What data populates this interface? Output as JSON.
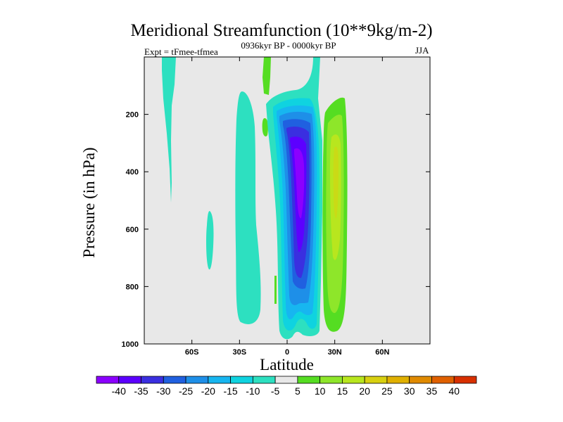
{
  "chart_data": {
    "type": "contour",
    "title": "Meridional Streamfunction (10**9kg/m-2)",
    "subtitle_left": "Expt = tFmee-tfmea",
    "subtitle_center": "0936kyr BP - 0000kyr BP",
    "subtitle_right": "JJA",
    "xlabel": "Latitude",
    "ylabel": "Pressure (in hPa)",
    "xlim": [
      -90,
      90
    ],
    "ylim": [
      1000,
      0
    ],
    "x_ticks": [
      {
        "value": -60,
        "label": "60S"
      },
      {
        "value": -30,
        "label": "30S"
      },
      {
        "value": 0,
        "label": "0"
      },
      {
        "value": 30,
        "label": "30N"
      },
      {
        "value": 60,
        "label": "60N"
      }
    ],
    "y_ticks": [
      {
        "value": 200,
        "label": "200"
      },
      {
        "value": 400,
        "label": "400"
      },
      {
        "value": 600,
        "label": "600"
      },
      {
        "value": 800,
        "label": "800"
      },
      {
        "value": 1000,
        "label": "1000"
      }
    ],
    "colorbar": {
      "levels": [
        "-40",
        "-35",
        "-30",
        "-25",
        "-20",
        "-15",
        "-10",
        "-5",
        "5",
        "10",
        "15",
        "20",
        "25",
        "30",
        "35",
        "40"
      ],
      "colors": [
        "#8b00ff",
        "#5c00ff",
        "#3a2fe0",
        "#2060e0",
        "#1e8fe8",
        "#17b6f0",
        "#0fd3e0",
        "#2de0c0",
        "#e8e8e8",
        "#55dd22",
        "#8ee62a",
        "#b8e61e",
        "#d8d010",
        "#e0b000",
        "#e08a00",
        "#e06000",
        "#d83000"
      ]
    },
    "regions": [
      {
        "name": "northern-hemisphere-positive-cell",
        "value_range": [
          5,
          15
        ],
        "x_range": [
          24,
          38
        ],
        "p_range": [
          170,
          970
        ],
        "peak_value": 15,
        "peak_at": [
          28,
          350
        ]
      },
      {
        "name": "equatorial-negative-cell",
        "value_range": [
          -40,
          -5
        ],
        "x_range": [
          -2,
          22
        ],
        "p_range": [
          90,
          980
        ],
        "peak_value": -40,
        "peak_at": [
          8,
          420
        ]
      },
      {
        "name": "southern-subtropical-negative-cell",
        "value_range": [
          -10,
          -5
        ],
        "x_range": [
          -31,
          -17
        ],
        "p_range": [
          150,
          940
        ],
        "peak_value": -10
      },
      {
        "name": "southern-highlat-negative-band",
        "value_range": [
          -10,
          -5
        ],
        "x_range": [
          -78,
          -70
        ],
        "p_range": [
          0,
          510
        ],
        "peak_value": -10
      },
      {
        "name": "southern-midlat-negative-blob",
        "value_range": [
          -10,
          -5
        ],
        "x_range": [
          -52,
          -48
        ],
        "p_range": [
          550,
          720
        ],
        "peak_value": -10
      },
      {
        "name": "upper-positive-strip",
        "value_range": [
          5,
          10
        ],
        "x_range": [
          -14,
          -10
        ],
        "p_range": [
          0,
          130
        ],
        "peak_value": 10
      },
      {
        "name": "upper-positive-patch",
        "value_range": [
          5,
          10
        ],
        "x_range": [
          -14,
          -12
        ],
        "p_range": [
          180,
          240
        ],
        "peak_value": 10
      }
    ]
  }
}
